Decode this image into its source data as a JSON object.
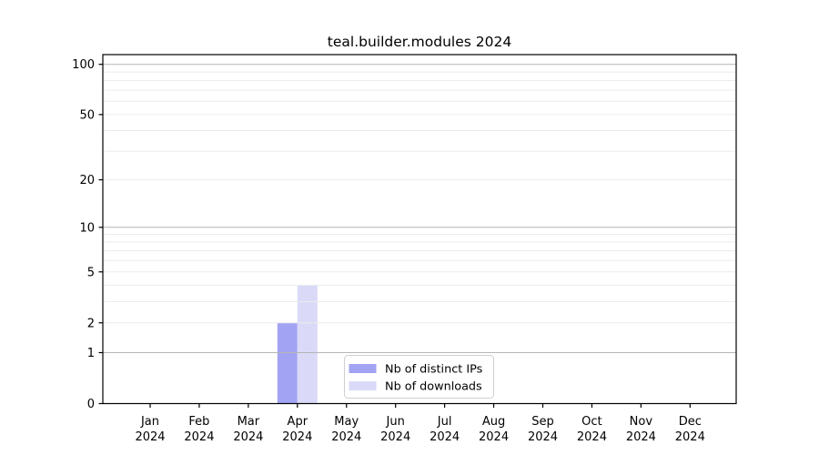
{
  "chart_data": {
    "type": "bar",
    "title": "teal.builder.modules 2024",
    "categories": [
      "Jan",
      "Feb",
      "Mar",
      "Apr",
      "May",
      "Jun",
      "Jul",
      "Aug",
      "Sep",
      "Oct",
      "Nov",
      "Dec"
    ],
    "year_label": "2024",
    "series": [
      {
        "name": "Nb of distinct IPs",
        "color": "#a3a3f3",
        "values": [
          0,
          0,
          0,
          2,
          0,
          0,
          0,
          0,
          0,
          0,
          0,
          0
        ]
      },
      {
        "name": "Nb of downloads",
        "color": "#dadaf8",
        "values": [
          0,
          0,
          0,
          4,
          0,
          0,
          0,
          0,
          0,
          0,
          0,
          0
        ]
      }
    ],
    "xlabel": "",
    "ylabel": "",
    "yscale": "log10(1+y)",
    "ylim": [
      0,
      114
    ],
    "yticks": [
      0,
      1,
      2,
      5,
      10,
      20,
      50,
      100
    ],
    "ytick_labels": [
      "0",
      "1",
      "2",
      "5",
      "10",
      "20",
      "50",
      "100"
    ],
    "grid": true,
    "light_gridlines": [
      2,
      3,
      4,
      5,
      6,
      7,
      8,
      9,
      20,
      30,
      40,
      50,
      60,
      70,
      80,
      90
    ],
    "decade_gridlines": [
      1,
      10,
      100
    ],
    "legend": {
      "position": "lower center",
      "entries": [
        "Nb of distinct IPs",
        "Nb of downloads"
      ]
    },
    "colors": {
      "spine": "#000000",
      "light_grid": "#ebebeb",
      "decade_grid": "#b6b6b6",
      "legend_border": "#cfcfcf",
      "legend_background": "#ffffff",
      "text": "#000000"
    }
  }
}
